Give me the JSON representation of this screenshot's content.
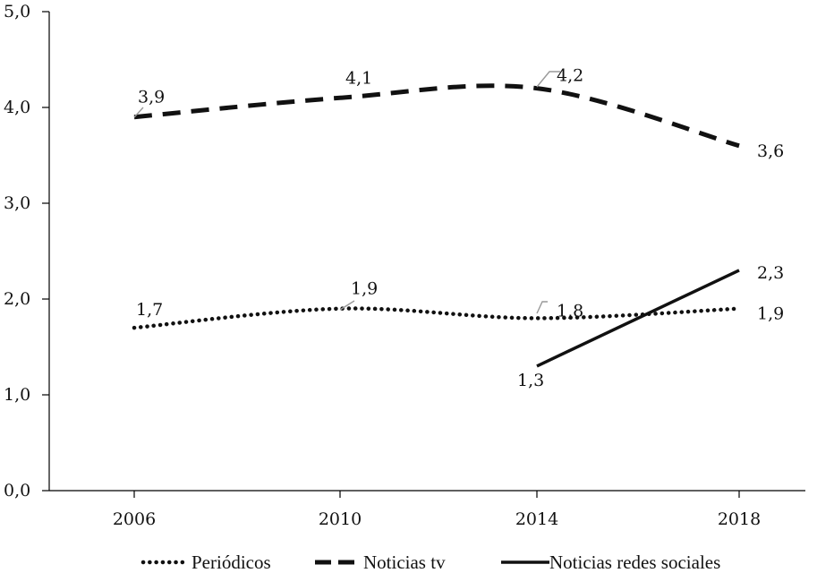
{
  "chart_data": {
    "type": "line",
    "x": [
      2006,
      2010,
      2014,
      2018
    ],
    "x_tick_labels": [
      "2006",
      "2010",
      "2014",
      "2018"
    ],
    "y_tick_labels": [
      "0,0",
      "1,0",
      "2,0",
      "3,0",
      "4,0",
      "5,0"
    ],
    "ylim": [
      0,
      5
    ],
    "grid": false,
    "legend_position": "bottom",
    "series": [
      {
        "name": "Periódicos",
        "values": [
          1.7,
          1.9,
          1.8,
          1.9
        ],
        "labels": [
          "1,7",
          "1,9",
          "1,8",
          "1,9"
        ],
        "style": "dotted",
        "color": "#111111"
      },
      {
        "name": "Noticias tv",
        "values": [
          3.9,
          4.1,
          4.2,
          3.6
        ],
        "labels": [
          "3,9",
          "4,1",
          "4,2",
          "3,6"
        ],
        "style": "dashed",
        "color": "#111111"
      },
      {
        "name": "Noticias redes sociales",
        "values": [
          null,
          null,
          1.3,
          2.3
        ],
        "labels": [
          null,
          null,
          "1,3",
          "2,3"
        ],
        "style": "solid",
        "color": "#111111"
      }
    ]
  }
}
